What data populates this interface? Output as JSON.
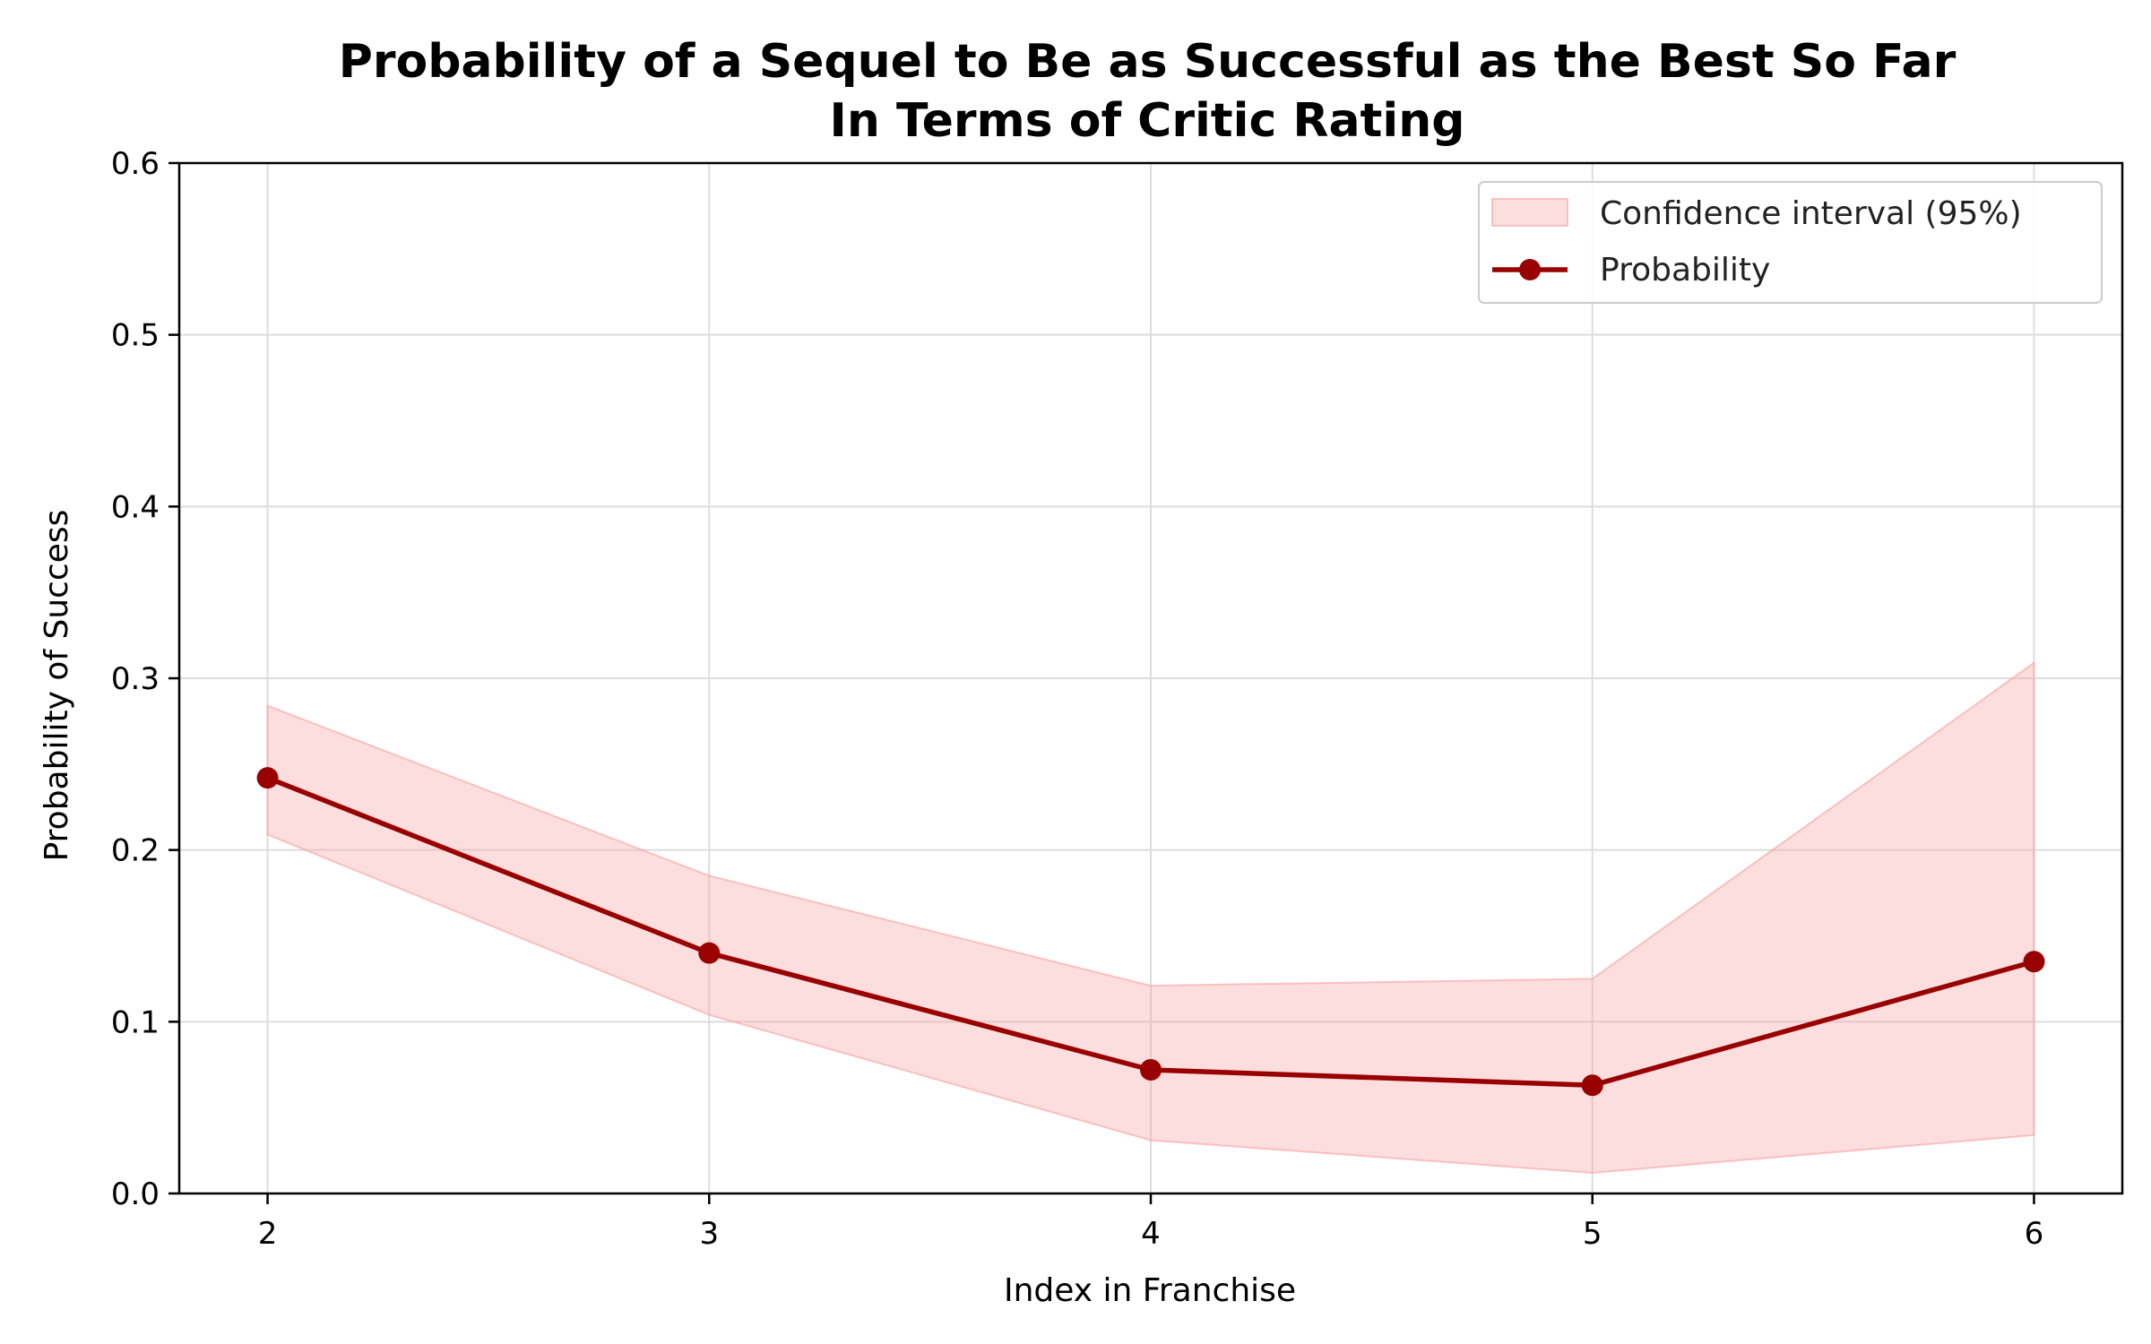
{
  "chart_data": {
    "type": "line",
    "title": [
      "Probability of a Sequel to Be as Successful as the Best So Far",
      "In Terms of Critic Rating"
    ],
    "xlabel": "Index in Franchise",
    "ylabel": "Probability of Success",
    "xlim": [
      1.8,
      6.2
    ],
    "ylim": [
      0,
      0.6
    ],
    "x_ticks": [
      2,
      3,
      4,
      5,
      6
    ],
    "y_ticks": [
      "0.0",
      "0.1",
      "0.2",
      "0.3",
      "0.4",
      "0.5",
      "0.6"
    ],
    "grid": true,
    "legend_position": "top-right",
    "series": [
      {
        "name": "Probability",
        "color": "#990000",
        "x": [
          2,
          3,
          4,
          5,
          6
        ],
        "values": [
          0.242,
          0.14,
          0.072,
          0.063,
          0.135
        ]
      }
    ],
    "confidence_interval": {
      "name": "Confidence interval (95%)",
      "color": "#f8a0a0",
      "x": [
        2,
        3,
        4,
        5,
        6
      ],
      "lower": [
        0.209,
        0.104,
        0.031,
        0.012,
        0.034
      ],
      "upper": [
        0.284,
        0.185,
        0.121,
        0.125,
        0.309
      ]
    }
  }
}
